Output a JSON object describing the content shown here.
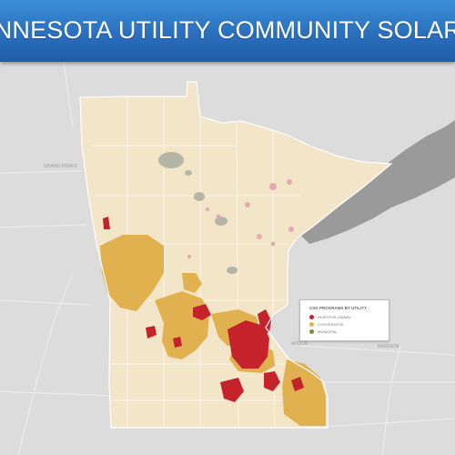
{
  "header": {
    "title": "INNESOTA UTILITY COMMUNITY SOLAR PRO"
  },
  "legend": {
    "title": "CSG PROGRAMS BY UTILITY",
    "items": [
      {
        "label": "INVESTOR-OWNED",
        "color": "#c4232b"
      },
      {
        "label": "COOPERATIVE",
        "color": "#e1b04f"
      },
      {
        "label": "MUNICIPAL",
        "color": "#7a8a3a"
      }
    ]
  },
  "colors": {
    "state": "#f3e6c8",
    "investor_owned": "#c4232b",
    "cooperative": "#e1b04f",
    "lake_superior": "#9a9a9a",
    "basemap": "#dcdcdc"
  },
  "places": {
    "minneapolis": "APOLIS",
    "west": "GRAND FORKS",
    "madison": "MADISON"
  }
}
